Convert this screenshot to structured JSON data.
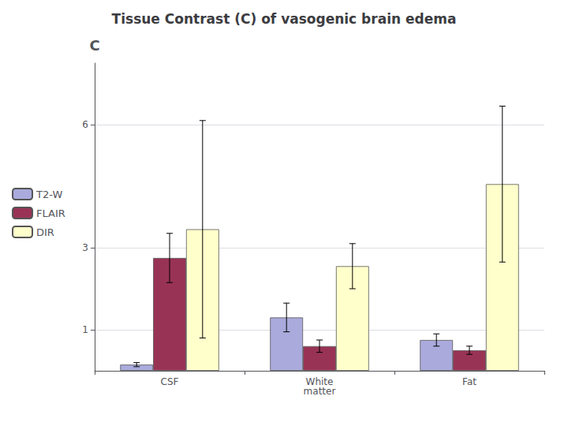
{
  "chart_data": {
    "type": "bar",
    "title": "Tissue Contrast (C) of vasogenic brain edema",
    "ylabel": "C",
    "categories": [
      "CSF",
      "White\nmatter",
      "Fat"
    ],
    "series": [
      {
        "name": "T2-W",
        "color": "#aaaadd",
        "values": [
          0.15,
          1.3,
          0.75
        ],
        "errors": [
          0.05,
          0.35,
          0.15
        ]
      },
      {
        "name": "FLAIR",
        "color": "#993355",
        "values": [
          2.75,
          0.6,
          0.5
        ],
        "errors": [
          0.6,
          0.15,
          0.1
        ]
      },
      {
        "name": "DIR",
        "color": "#ffffcc",
        "values": [
          3.45,
          2.55,
          4.55
        ],
        "errors": [
          2.65,
          0.55,
          1.9
        ]
      }
    ],
    "ylim": [
      0,
      7.5
    ],
    "yticks": [
      1,
      3,
      6
    ],
    "grid": true,
    "legend": "left"
  }
}
